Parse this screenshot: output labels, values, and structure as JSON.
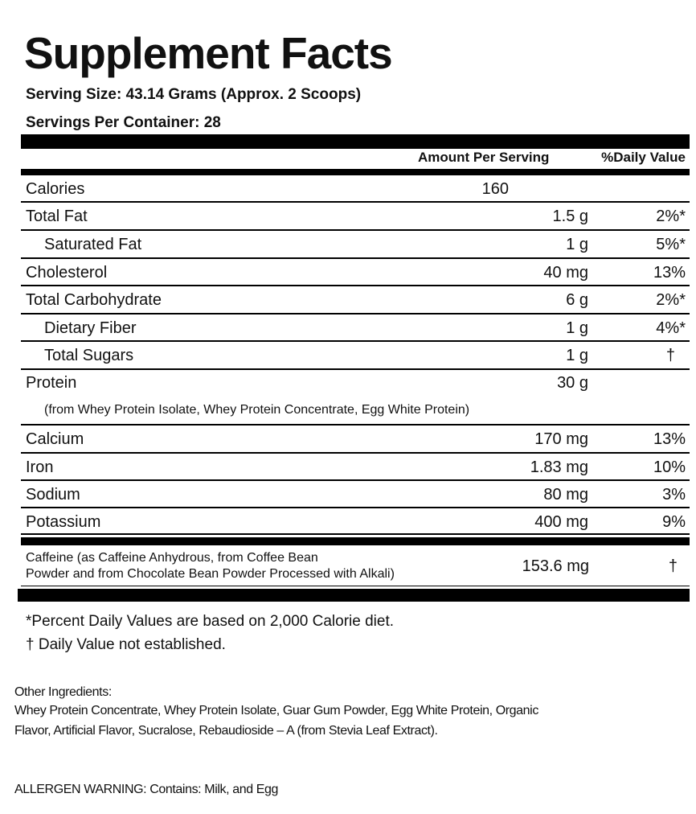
{
  "title": "Supplement Facts",
  "serving_size": "Serving Size: 43.14 Grams (Approx. 2 Scoops)",
  "servings_per_container": "Servings Per Container: 28",
  "headers": {
    "amount": "Amount Per Serving",
    "daily_value": "%Daily Value"
  },
  "calories": {
    "name": "Calories",
    "amount": "160"
  },
  "rows": [
    {
      "name": "Total Fat",
      "amount": "1.5 g",
      "dv": "2%*"
    },
    {
      "name": "Saturated Fat",
      "amount": "1 g",
      "dv": "5%*"
    },
    {
      "name": "Cholesterol",
      "amount": "40 mg",
      "dv": "13%"
    },
    {
      "name": "Total Carbohydrate",
      "amount": "6 g",
      "dv": "2%*"
    },
    {
      "name": "Dietary Fiber",
      "amount": "1 g",
      "dv": "4%*"
    },
    {
      "name": "Total Sugars",
      "amount": "1 g",
      "dv": "†"
    },
    {
      "name": "Protein",
      "amount": "30 g",
      "dv": ""
    },
    {
      "name": "Calcium",
      "amount": "170 mg",
      "dv": "13%"
    },
    {
      "name": "Iron",
      "amount": "1.83 mg",
      "dv": "10%"
    },
    {
      "name": "Sodium",
      "amount": "80 mg",
      "dv": "3%"
    },
    {
      "name": "Potassium",
      "amount": "400 mg",
      "dv": "9%"
    }
  ],
  "protein_source": "(from Whey Protein Isolate, Whey Protein Concentrate, Egg White Protein)",
  "caffeine": {
    "name_line1": "Caffeine (as Caffeine Anhydrous, from Coffee Bean",
    "name_line2": "Powder and from Chocolate Bean Powder Processed with Alkali)",
    "amount": "153.6 mg",
    "dv": "†"
  },
  "footnotes": {
    "percent": "*Percent Daily Values are based on 2,000 Calorie diet.",
    "dagger": "† Daily Value not established."
  },
  "other_ingredients": {
    "label": "Other Ingredients:",
    "line1": "Whey Protein Concentrate, Whey Protein Isolate, Guar Gum Powder, Egg White Protein, Organic",
    "line2": "Flavor, Artificial Flavor, Sucralose, Rebaudioside – A (from Stevia Leaf Extract)."
  },
  "allergen_warning": "ALLERGEN WARNING: Contains: Milk, and Egg"
}
